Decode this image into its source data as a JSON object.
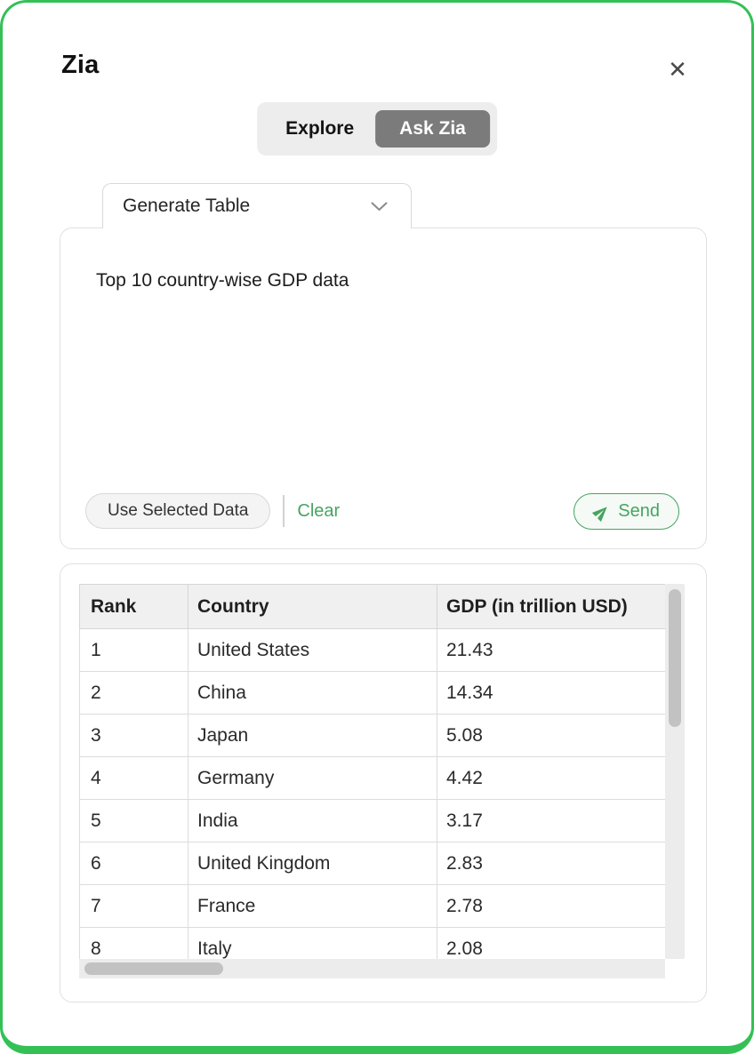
{
  "header": {
    "title": "Zia",
    "close_icon": "✕"
  },
  "mode_toggle": {
    "explore_label": "Explore",
    "ask_zia_label": "Ask Zia",
    "selected": "Ask Zia"
  },
  "prompt_panel": {
    "tab_label": "Generate Table",
    "query_text": "Top 10 country-wise GDP data",
    "use_selected_data_label": "Use Selected Data",
    "clear_label": "Clear",
    "send_label": "Send"
  },
  "result_table": {
    "columns": [
      "Rank",
      "Country",
      "GDP (in trillion USD)"
    ],
    "rows": [
      [
        "1",
        "United States",
        "21.43"
      ],
      [
        "2",
        "China",
        "14.34"
      ],
      [
        "3",
        "Japan",
        "5.08"
      ],
      [
        "4",
        "Germany",
        "4.42"
      ],
      [
        "5",
        "India",
        "3.17"
      ],
      [
        "6",
        "United Kingdom",
        "2.83"
      ],
      [
        "7",
        "France",
        "2.78"
      ],
      [
        "8",
        "Italy",
        "2.08"
      ]
    ]
  },
  "colors": {
    "panel_border_green": "#33c156",
    "accent_green": "#47a461",
    "selected_toggle_bg": "#7b7b7b",
    "table_header_bg": "#f0f0f0"
  }
}
